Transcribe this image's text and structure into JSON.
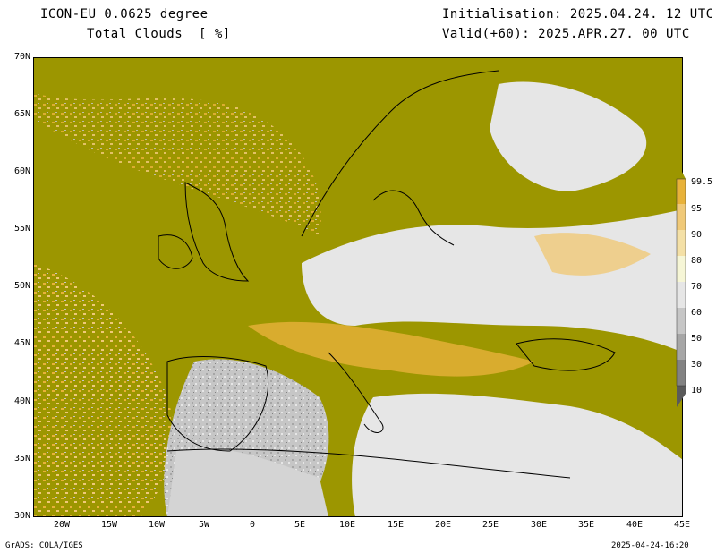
{
  "header": {
    "model": "ICON-EU 0.0625 degree",
    "field": "Total Clouds  [ %]",
    "init": "Initialisation: 2025.04.24. 12 UTC",
    "valid": "Valid(+60): 2025.APR.27. 00 UTC"
  },
  "footer": {
    "left": "GrADS: COLA/IGES",
    "right": "2025-04-24-16:20"
  },
  "axes": {
    "lat_labels": [
      "70N",
      "65N",
      "60N",
      "55N",
      "50N",
      "45N",
      "40N",
      "35N",
      "30N"
    ],
    "lon_labels": [
      "20W",
      "15W",
      "10W",
      "5W",
      "0",
      "5E",
      "10E",
      "15E",
      "20E",
      "25E",
      "30E",
      "35E",
      "40E",
      "45E"
    ],
    "lat_range": [
      30,
      70
    ],
    "lon_range": [
      -23,
      45
    ]
  },
  "colorbar": {
    "levels": [
      "99.5",
      "95",
      "90",
      "80",
      "70",
      "60",
      "50",
      "30",
      "10"
    ],
    "colors": [
      "#9c9600",
      "#e8b23a",
      "#f0c978",
      "#f4e0a6",
      "#f6f6d6",
      "#e6e6e6",
      "#c6c6c6",
      "#a6a6a6",
      "#828282",
      "#5a5a5a"
    ]
  }
}
